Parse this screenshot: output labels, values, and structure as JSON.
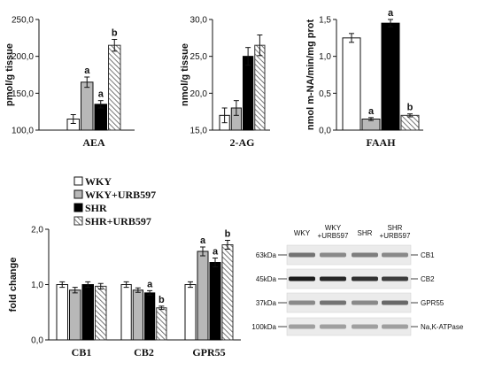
{
  "chart_data": [
    {
      "type": "bar",
      "categories": [
        "AEA"
      ],
      "series": [
        {
          "name": "WKY",
          "values": [
            115
          ],
          "errors": [
            6
          ]
        },
        {
          "name": "WKY+URB597",
          "values": [
            165
          ],
          "errors": [
            7
          ],
          "annotations": [
            "a"
          ]
        },
        {
          "name": "SHR",
          "values": [
            135
          ],
          "errors": [
            5
          ],
          "annotations": [
            "a"
          ]
        },
        {
          "name": "SHR+URB597",
          "values": [
            215
          ],
          "errors": [
            8
          ],
          "annotations": [
            "b"
          ]
        }
      ],
      "ylabel": "pmol/g tissue",
      "ylim": [
        100,
        250
      ],
      "yticks": [
        "100,0",
        "150,0",
        "200,0",
        "250,0"
      ],
      "grid": false
    },
    {
      "type": "bar",
      "categories": [
        "2-AG"
      ],
      "series": [
        {
          "name": "WKY",
          "values": [
            17
          ],
          "errors": [
            1.0
          ]
        },
        {
          "name": "WKY+URB597",
          "values": [
            18
          ],
          "errors": [
            1.0
          ]
        },
        {
          "name": "SHR",
          "values": [
            25
          ],
          "errors": [
            1.2
          ]
        },
        {
          "name": "SHR+URB597",
          "values": [
            26.5
          ],
          "errors": [
            1.4
          ]
        }
      ],
      "ylabel": "nmol/g tissue",
      "ylim": [
        15,
        30
      ],
      "yticks": [
        "15,0",
        "20,0",
        "25,0",
        "30,0"
      ],
      "grid": false
    },
    {
      "type": "bar",
      "categories": [
        "FAAH"
      ],
      "series": [
        {
          "name": "WKY",
          "values": [
            1.25
          ],
          "errors": [
            0.06
          ]
        },
        {
          "name": "WKY+URB597",
          "values": [
            0.15
          ],
          "errors": [
            0.02
          ],
          "annotations": [
            "a"
          ]
        },
        {
          "name": "SHR",
          "values": [
            1.45
          ],
          "errors": [
            0.05
          ],
          "annotations": [
            "a"
          ]
        },
        {
          "name": "SHR+URB597",
          "values": [
            0.2
          ],
          "errors": [
            0.02
          ],
          "annotations": [
            "b"
          ]
        }
      ],
      "ylabel": "nmol m-NA/min/mg prot",
      "ylim": [
        0,
        1.5
      ],
      "yticks": [
        "0,0",
        "0,5",
        "1,0",
        "1,5"
      ],
      "grid": false
    },
    {
      "type": "bar",
      "categories": [
        "CB1",
        "CB2",
        "GPR55"
      ],
      "series": [
        {
          "name": "WKY",
          "values": [
            1.0,
            1.0,
            1.0
          ],
          "errors": [
            0.05,
            0.05,
            0.05
          ]
        },
        {
          "name": "WKY+URB597",
          "values": [
            0.9,
            0.9,
            1.6
          ],
          "errors": [
            0.05,
            0.04,
            0.08
          ],
          "annotations": [
            "",
            "",
            "a"
          ]
        },
        {
          "name": "SHR",
          "values": [
            1.0,
            0.85,
            1.4
          ],
          "errors": [
            0.05,
            0.04,
            0.08
          ],
          "annotations": [
            "",
            "a",
            "a"
          ]
        },
        {
          "name": "SHR+URB597",
          "values": [
            0.97,
            0.58,
            1.72
          ],
          "errors": [
            0.05,
            0.03,
            0.08
          ],
          "annotations": [
            "",
            "b",
            "b"
          ]
        }
      ],
      "ylabel": "fold change",
      "ylim": [
        0,
        2
      ],
      "yticks": [
        "0,0",
        "1,0",
        "2,0"
      ],
      "grid": false,
      "legend": "top"
    }
  ],
  "legend_entries": [
    "WKY",
    "WKY+URB597",
    "SHR",
    "SHR+URB597"
  ],
  "western_blot": {
    "lanes": [
      "WKY",
      "WKY\n+URB597",
      "SHR",
      "SHR\n+URB597"
    ],
    "markers": [
      "63kDa",
      "45kDa",
      "37kDa",
      "100kDa"
    ],
    "bands": [
      "CB1",
      "CB2",
      "GPR55",
      "Na,K-ATPase"
    ]
  }
}
